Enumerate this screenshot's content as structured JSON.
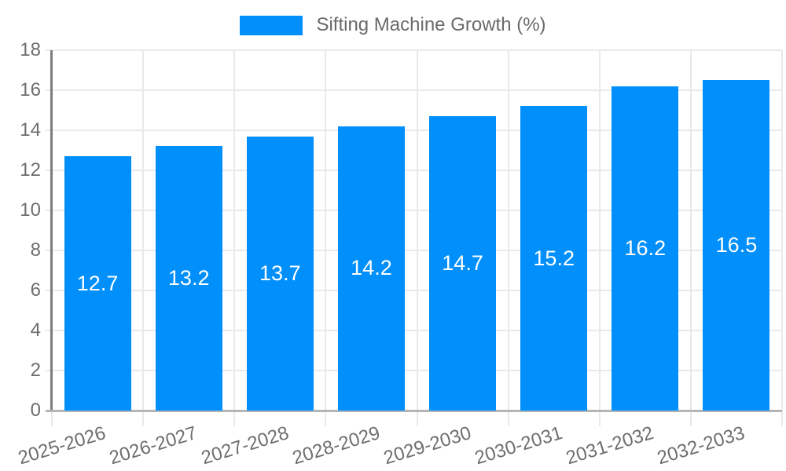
{
  "legend": {
    "label": "Sifting Machine Growth (%)"
  },
  "colors": {
    "bar": "#008FFB",
    "grid": "#e9e9e9",
    "zero_line": "#b5b5b5",
    "axis_line": "#7c7c7c",
    "tick_label": "#6e6e6e",
    "data_label": "#ffffff",
    "background": "#ffffff"
  },
  "chart_data": {
    "type": "bar",
    "title": "Sifting Machine Growth (%)",
    "series_name": "Sifting Machine Growth (%)",
    "categories": [
      "2025-2026",
      "2026-2027",
      "2027-2028",
      "2028-2029",
      "2029-2030",
      "2030-2031",
      "2031-2032",
      "2032-2033"
    ],
    "values": [
      12.7,
      13.2,
      13.7,
      14.2,
      14.7,
      15.2,
      16.2,
      16.5
    ],
    "data_labels": [
      "12.7",
      "13.2",
      "13.7",
      "14.2",
      "14.7",
      "15.2",
      "16.2",
      "16.5"
    ],
    "xlabel": "",
    "ylabel": "",
    "ylim": [
      0,
      18
    ],
    "yticks": [
      0,
      2,
      4,
      6,
      8,
      10,
      12,
      14,
      16,
      18
    ],
    "grid": true,
    "legend_position": "top",
    "data_label_position": "center-inside",
    "x_label_rotation_deg": -17
  }
}
